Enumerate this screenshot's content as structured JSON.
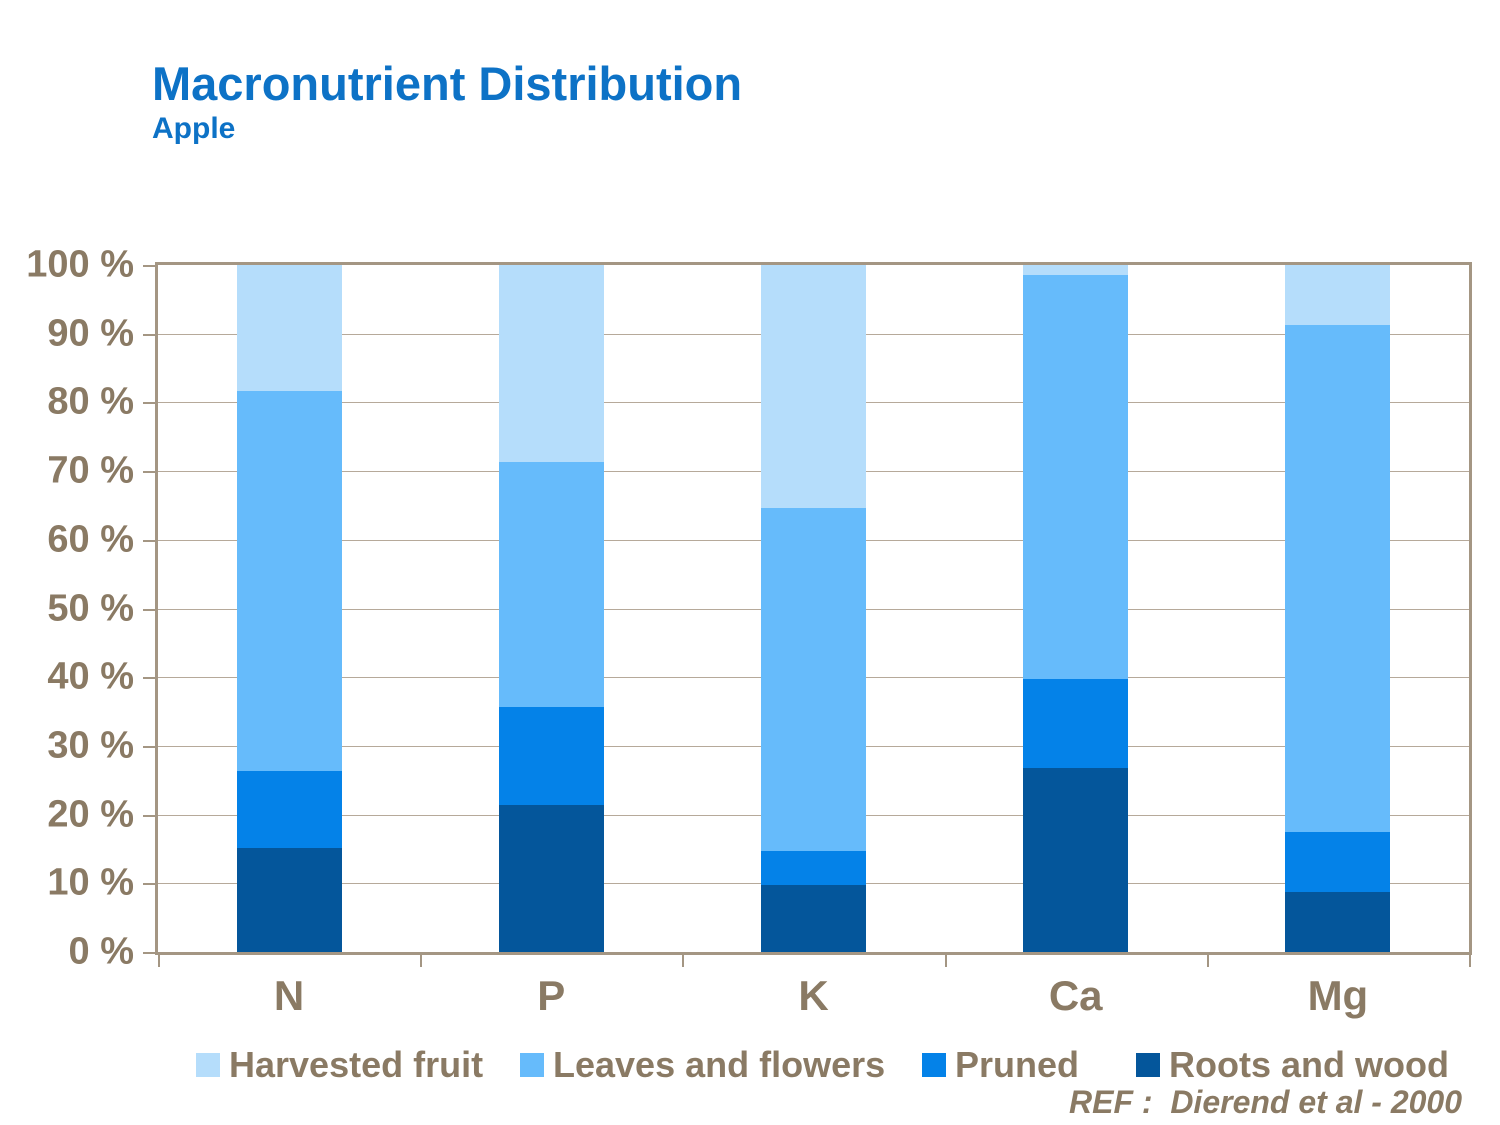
{
  "slide": {
    "title": "Macronutrient Distribution",
    "subtitle": "Apple",
    "reference": "REF :  Dierend et al - 2000"
  },
  "colors": {
    "title_blue": "#0d72c6",
    "text_brown": "#8a7a64",
    "frame": "#a49683",
    "gridline": "#b6a99a",
    "background": "#ffffff"
  },
  "chart_data": {
    "type": "bar",
    "stacked": true,
    "unit": "%",
    "title": "Macronutrient Distribution",
    "subtitle": "Apple",
    "categories": [
      "N",
      "P",
      "K",
      "Ca",
      "Mg"
    ],
    "series": [
      {
        "name": "Roots and wood",
        "color": "#04569b",
        "values": [
          15.2,
          21.4,
          9.7,
          26.8,
          8.8
        ]
      },
      {
        "name": "Pruned",
        "color": "#0482e8",
        "values": [
          11.2,
          14.3,
          5.0,
          13.0,
          8.6
        ]
      },
      {
        "name": "Leaves and flowers",
        "color": "#66bbfb",
        "values": [
          55.2,
          35.6,
          50.0,
          58.7,
          73.8
        ]
      },
      {
        "name": "Harvested fruit",
        "color": "#b5ddfb",
        "values": [
          18.4,
          28.7,
          35.3,
          1.5,
          8.8
        ]
      }
    ],
    "legend_order": [
      "Harvested fruit",
      "Leaves and flowers",
      "Pruned",
      "Roots and wood"
    ],
    "legend_position": "bottom",
    "ylim": [
      0,
      100
    ],
    "yticks": [
      0,
      10,
      20,
      30,
      40,
      50,
      60,
      70,
      80,
      90,
      100
    ],
    "ytick_suffix": " %",
    "grid": "horizontal"
  }
}
